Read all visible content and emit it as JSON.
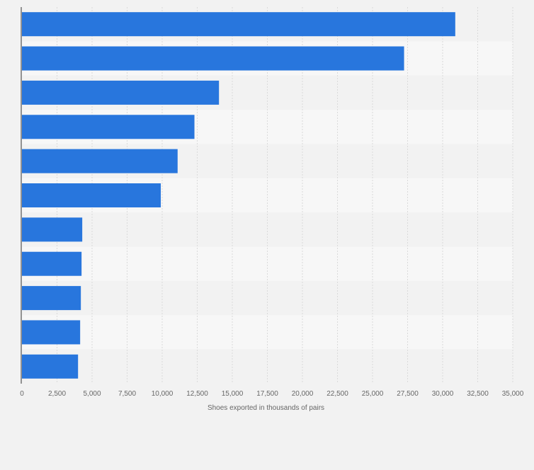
{
  "chart_data": {
    "type": "bar",
    "orientation": "horizontal",
    "title": "",
    "xlabel": "Shoes exported in thousands of pairs",
    "ylabel": "",
    "xlim": [
      0,
      35000
    ],
    "x_ticks": [
      0,
      2500,
      5000,
      7500,
      10000,
      12500,
      15000,
      17500,
      20000,
      22500,
      25000,
      27500,
      30000,
      32500,
      35000
    ],
    "x_tick_labels": [
      "0",
      "2,500",
      "5,000",
      "7,500",
      "10,000",
      "12,500",
      "15,000",
      "17,500",
      "20,000",
      "22,500",
      "25,000",
      "27,500",
      "30,000",
      "32,500",
      "35,000"
    ],
    "values": [
      30900,
      27250,
      14050,
      12300,
      11100,
      9900,
      4300,
      4250,
      4200,
      4150,
      4000
    ],
    "grid": true,
    "bar_color": "#2876dd",
    "legend": "none"
  },
  "colors": {
    "page_background": "#f2f2f2",
    "band_light": "#f7f7f7",
    "band_dark": "#f2f2f2",
    "gridline": "#dadada",
    "axis_line": "#333333",
    "tick_text": "#666666"
  }
}
